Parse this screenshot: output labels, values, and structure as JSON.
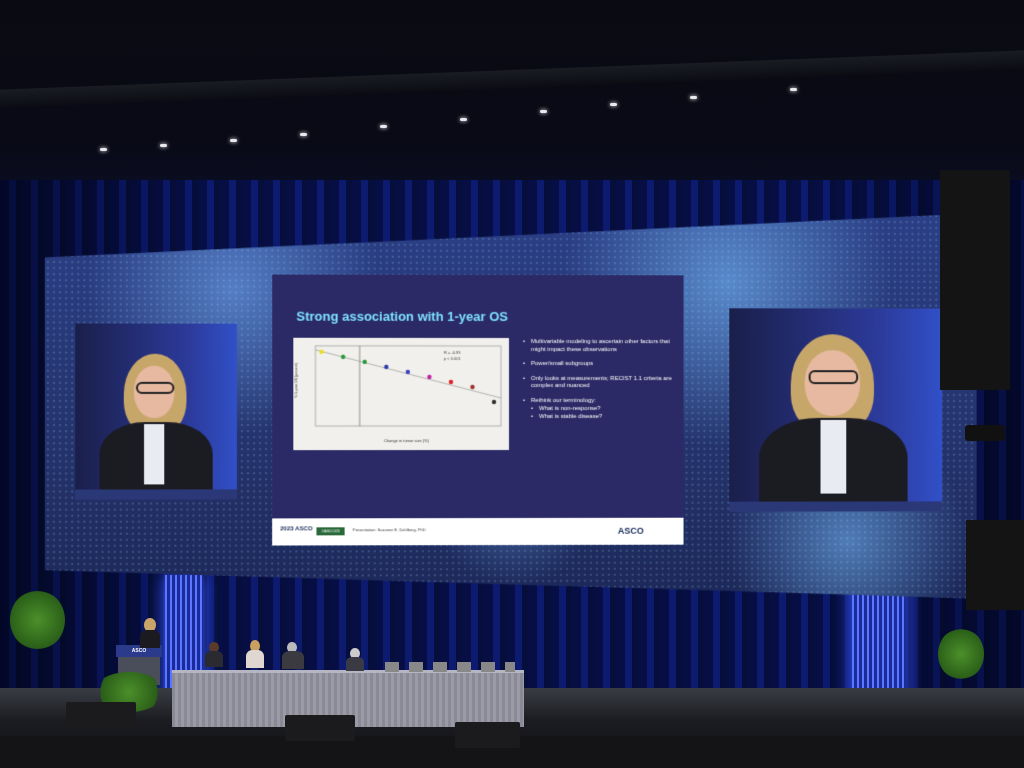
{
  "slide": {
    "title": "Strong association with 1-year OS",
    "bullets": [
      "Multivariable modeling to ascertain other factors that might impact these observations",
      "Power/small subgroups",
      "Only looks at measurements; RECIST 1.1 criteria are complex and nuanced",
      "Rethink our terminology:"
    ],
    "sub_bullets": [
      "What is non-response?",
      "What is stable disease?"
    ],
    "plot": {
      "ylabel": "% 1-year OS (percent)",
      "xlabel": "Change in tumor size (%)",
      "stats": [
        "R = -0.93",
        "p < 0.001"
      ],
      "point_colors": [
        "#e8e020",
        "#2a9a3a",
        "#2a9a3a",
        "#2a3aaa",
        "#4040c0",
        "#c020a0",
        "#e02020",
        "#a03030",
        "#303030"
      ]
    },
    "footer": {
      "year_brand": "2023 ASCO",
      "hashtag": "#ASCO23",
      "presenter": "Presentation: Suzanne E. Dahlberg, PhD",
      "logo": "ASCO"
    }
  },
  "lectern_label": "ASCO",
  "colors": {
    "slide_bg": "#2b2a66",
    "title": "#7ee0ff",
    "curtain": "#0d1d7a",
    "led": "#5a78ff"
  }
}
